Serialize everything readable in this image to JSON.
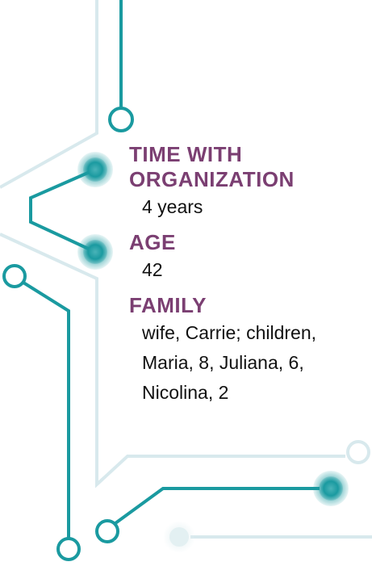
{
  "fields": [
    {
      "label": "TIME WITH ORGANIZATION",
      "lines": [
        "4 years"
      ]
    },
    {
      "label": "AGE",
      "lines": [
        "42"
      ]
    },
    {
      "label": "FAMILY",
      "lines": [
        "wife, Carrie; children,",
        "Maria, 8, Juliana, 6,",
        "Nicolina, 2"
      ]
    }
  ]
}
